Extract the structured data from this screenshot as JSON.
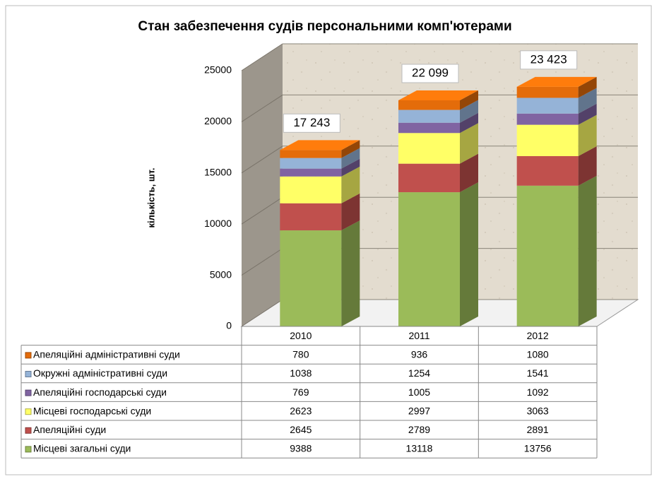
{
  "chart_data": {
    "type": "bar3d_stacked",
    "title": "Стан забезпечення судів персональними комп'ютерами",
    "y_label": "кількість, шт.",
    "categories": [
      "2010",
      "2011",
      "2012"
    ],
    "series": [
      {
        "name": "Місцеві загальні суди",
        "color": "#9bbb59",
        "values": [
          9388,
          13118,
          13756
        ]
      },
      {
        "name": "Апеляційні суди",
        "color": "#c0504d",
        "values": [
          2645,
          2789,
          2891
        ]
      },
      {
        "name": "Місцеві господарські суди",
        "color": "#ffff66",
        "values": [
          2623,
          2997,
          3063
        ]
      },
      {
        "name": "Апеляційні господарські суди",
        "color": "#8064a2",
        "values": [
          769,
          1005,
          1092
        ]
      },
      {
        "name": "Окружні адміністративні суди",
        "color": "#95b3d7",
        "values": [
          1038,
          1254,
          1541
        ]
      },
      {
        "name": "Апеляційні адміністративні суди",
        "color": "#e46c0a",
        "values": [
          780,
          936,
          1080
        ]
      }
    ],
    "totals": [
      17243,
      22099,
      23423
    ],
    "total_labels": [
      "17 243",
      "22 099",
      "23 423"
    ],
    "ylim": [
      0,
      25000
    ],
    "yticks": [
      0,
      5000,
      10000,
      15000,
      20000,
      25000
    ],
    "grid": true
  }
}
